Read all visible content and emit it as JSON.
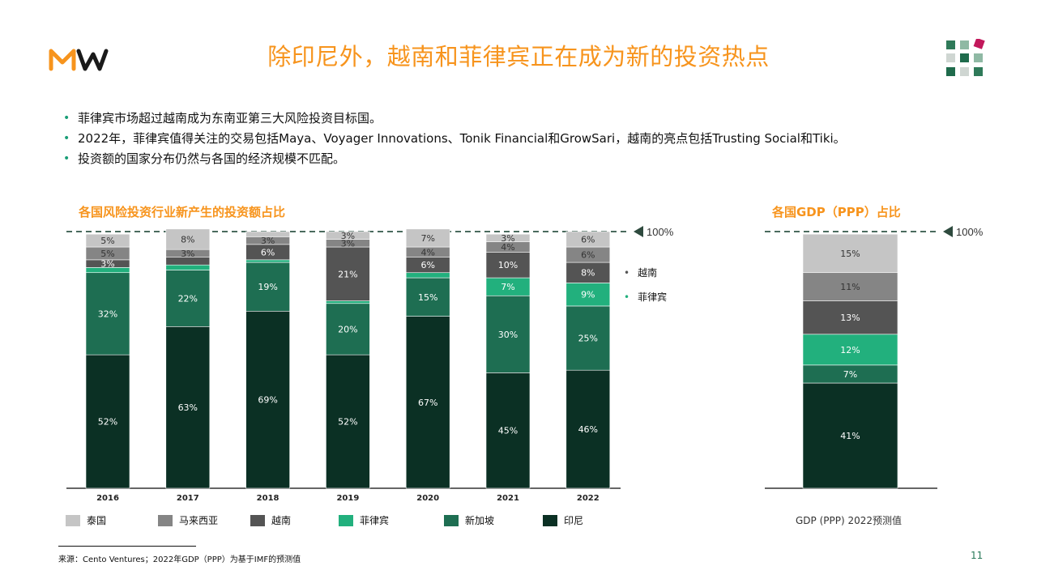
{
  "header": {
    "title": "除印尼外，越南和菲律宾正在成为新的投资热点",
    "logo_text": "MW"
  },
  "bullets": [
    "菲律宾市场超过越南成为东南亚第三大风险投资目标国。",
    "2022年，菲律宾值得关注的交易包括Maya、Voyager Innovations、Tonik Financial和GrowSari，越南的亮点包括Trusting Social和Tiki。",
    "投资额的国家分布仍然与各国的经济规模不匹配。"
  ],
  "colors": {
    "title": "#F7941D",
    "泰国": "#C5C5C5",
    "马来西亚": "#858585",
    "越南": "#545454",
    "菲律宾": "#22B07D",
    "新加坡": "#1E6E52",
    "印尼": "#0B3024"
  },
  "chart_data": [
    {
      "type": "bar",
      "stacked": true,
      "title": "各国风险投资行业新产生的投资额占比",
      "categories": [
        "2016",
        "2017",
        "2018",
        "2019",
        "2020",
        "2021",
        "2022"
      ],
      "ylim": [
        0,
        100
      ],
      "reference_line": "100%",
      "series": [
        {
          "name": "印尼",
          "values": [
            52,
            63,
            69,
            52,
            67,
            45,
            46
          ],
          "labels": [
            "52%",
            "63%",
            "69%",
            "52%",
            "67%",
            "45%",
            "46%"
          ]
        },
        {
          "name": "新加坡",
          "values": [
            32,
            22,
            19,
            20,
            15,
            30,
            25
          ],
          "labels": [
            "32%",
            "22%",
            "19%",
            "20%",
            "15%",
            "30%",
            "25%"
          ]
        },
        {
          "name": "菲律宾",
          "values": [
            2,
            2,
            1,
            1,
            2,
            7,
            9
          ],
          "labels": [
            "",
            "",
            "",
            "",
            "",
            "7%",
            "9%"
          ]
        },
        {
          "name": "越南",
          "values": [
            3,
            3,
            6,
            21,
            6,
            10,
            8
          ],
          "labels": [
            "3%",
            "",
            "6%",
            "21%",
            "6%",
            "10%",
            "8%"
          ]
        },
        {
          "name": "马来西亚",
          "values": [
            5,
            3,
            3,
            3,
            4,
            4,
            6
          ],
          "labels": [
            "5%",
            "3%",
            "3%",
            "3%",
            "4%",
            "4%",
            "6%"
          ]
        },
        {
          "name": "泰国",
          "values": [
            5,
            8,
            2,
            3,
            7,
            3,
            6
          ],
          "labels": [
            "5%",
            "8%",
            "",
            "3%",
            "7%",
            "3%",
            "6%"
          ]
        }
      ],
      "legend": [
        "泰国",
        "马来西亚",
        "越南",
        "菲律宾",
        "新加坡",
        "印尼"
      ],
      "side_labels": [
        "越南",
        "菲律宾"
      ]
    },
    {
      "type": "bar",
      "stacked": true,
      "title": "各国GDP（PPP）占比",
      "categories": [
        "GDP (PPP) 2022预测值"
      ],
      "ylim": [
        0,
        100
      ],
      "reference_line": "100%",
      "series": [
        {
          "name": "印尼",
          "values": [
            41
          ],
          "labels": [
            "41%"
          ]
        },
        {
          "name": "新加坡",
          "values": [
            7
          ],
          "labels": [
            "7%"
          ]
        },
        {
          "name": "菲律宾",
          "values": [
            12
          ],
          "labels": [
            "12%"
          ]
        },
        {
          "name": "越南",
          "values": [
            13
          ],
          "labels": [
            "13%"
          ]
        },
        {
          "name": "马来西亚",
          "values": [
            11
          ],
          "labels": [
            "11%"
          ]
        },
        {
          "name": "泰国",
          "values": [
            15
          ],
          "labels": [
            "15%"
          ]
        }
      ]
    }
  ],
  "footer": {
    "source": "来源：Cento Ventures；2022年GDP（PPP）为基于IMF的预测值",
    "page": "11",
    "gdp_note": "GDP (PPP) 2022预测值"
  }
}
